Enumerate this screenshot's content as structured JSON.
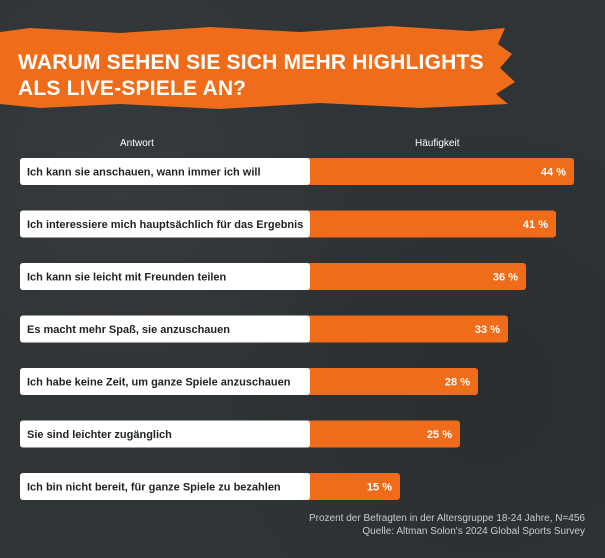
{
  "title_line1": "WARUM SEHEN SIE SICH MEHR HIGHLIGHTS",
  "title_line2": "ALS LIVE-SPIELE AN?",
  "column_answer": "Antwort",
  "column_frequency": "Häufigkeit",
  "footnote_line1": "Prozent der Befragten in der Altersgruppe 18-24 Jahre, N=456",
  "footnote_line2": "Quelle: Altman Solon's 2024 Global Sports Survey",
  "colors": {
    "accent": "#ef6c1a",
    "background": "#2f3436",
    "label_box": "#ffffff"
  },
  "chart_data": {
    "type": "bar",
    "orientation": "horizontal",
    "categories": [
      "Ich kann sie anschauen, wann immer ich will",
      "Ich interessiere mich hauptsächlich für das Ergebnis",
      "Ich kann sie leicht mit Freunden teilen",
      "Es macht mehr Spaß, sie anzuschauen",
      "Ich habe keine Zeit, um ganze Spiele anzuschauen",
      "Sie sind leichter zugänglich",
      "Ich bin nicht bereit, für ganze Spiele zu bezahlen"
    ],
    "values": [
      44,
      41,
      36,
      33,
      28,
      25,
      15
    ],
    "value_labels": [
      "44 %",
      "41 %",
      "36 %",
      "33 %",
      "28 %",
      "25 %",
      "15 %"
    ],
    "unit": "%"
  }
}
